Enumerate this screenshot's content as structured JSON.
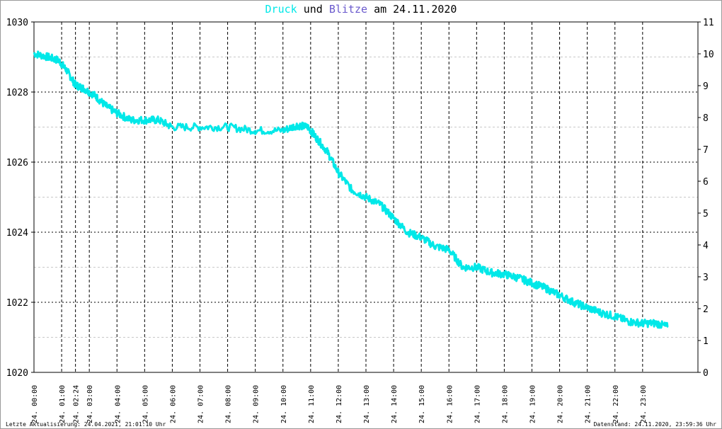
{
  "title": {
    "series1": "Druck",
    "connector": "und",
    "series2": "Blitze",
    "suffix": "am 24.11.2020"
  },
  "footer": {
    "left": "Letzte Aktualisierung: 24.04.2021, 21:01:10 Uhr",
    "right": "Datenstand: 24.11.2020, 23:59:36 Uhr"
  },
  "colors": {
    "druck": "#00e8e8",
    "blitze": "#6a5acd",
    "grid": "#000000",
    "minor_grid": "#c8c8c8",
    "frame": "#9a9a9a"
  },
  "chart_data": {
    "type": "line",
    "title": "Druck und Blitze am 24.11.2020",
    "y_left": {
      "min": 1020,
      "max": 1030,
      "ticks": [
        "1020",
        "1022",
        "1024",
        "1026",
        "1028",
        "1030"
      ]
    },
    "y_right": {
      "min": 0,
      "max": 11,
      "ticks": [
        "0",
        "1",
        "2",
        "3",
        "4",
        "5",
        "6",
        "7",
        "8",
        "9",
        "10",
        "11"
      ]
    },
    "x_range_hours": [
      0,
      24
    ],
    "x_ticks": [
      {
        "h": 0,
        "label": "24. 00:00"
      },
      {
        "h": 1,
        "label": "24. 01:00"
      },
      {
        "h": 1.5,
        "label": "24. 02:24"
      },
      {
        "h": 2,
        "label": "24. 03:00"
      },
      {
        "h": 3,
        "label": "24. 04:00"
      },
      {
        "h": 4,
        "label": "24. 05:00"
      },
      {
        "h": 5,
        "label": "24. 06:00"
      },
      {
        "h": 6,
        "label": "24. 07:00"
      },
      {
        "h": 7,
        "label": "24. 08:00"
      },
      {
        "h": 8,
        "label": "24. 09:00"
      },
      {
        "h": 9,
        "label": "24. 10:00"
      },
      {
        "h": 10,
        "label": "24. 11:00"
      },
      {
        "h": 11,
        "label": "24. 12:00"
      },
      {
        "h": 12,
        "label": "24. 13:00"
      },
      {
        "h": 13,
        "label": "24. 14:00"
      },
      {
        "h": 14,
        "label": "24. 15:00"
      },
      {
        "h": 15,
        "label": "24. 16:00"
      },
      {
        "h": 16,
        "label": "24. 17:00"
      },
      {
        "h": 17,
        "label": "24. 18:00"
      },
      {
        "h": 18,
        "label": "24. 19:00"
      },
      {
        "h": 19,
        "label": "24. 20:00"
      },
      {
        "h": 20,
        "label": "24. 21:00"
      },
      {
        "h": 21,
        "label": "24. 22:00"
      },
      {
        "h": 22,
        "label": "24. 23:00"
      }
    ],
    "grid": true,
    "series": [
      {
        "name": "Druck",
        "axis": "left",
        "x": [
          0,
          0.5,
          0.9,
          1.2,
          1.5,
          1.8,
          2.2,
          2.6,
          3.0,
          3.5,
          4.0,
          4.5,
          5.0,
          6.0,
          7.0,
          8.0,
          9.0,
          9.5,
          9.9,
          10.2,
          10.6,
          11.0,
          11.5,
          12.0,
          12.5,
          13.0,
          13.5,
          14.0,
          14.5,
          15.0,
          15.5,
          16.0,
          16.5,
          17.0,
          17.5,
          18.0,
          18.5,
          19.0,
          19.5,
          20.0,
          20.5,
          21.0,
          21.5,
          22.0,
          22.5,
          22.9
        ],
        "y": [
          1029.1,
          1029.0,
          1028.9,
          1028.6,
          1028.2,
          1028.1,
          1027.9,
          1027.6,
          1027.4,
          1027.2,
          1027.2,
          1027.2,
          1027.0,
          1027.0,
          1027.0,
          1026.9,
          1026.9,
          1027.05,
          1027.0,
          1026.7,
          1026.3,
          1025.7,
          1025.2,
          1025.0,
          1024.8,
          1024.4,
          1024.0,
          1023.85,
          1023.6,
          1023.5,
          1023.0,
          1023.0,
          1022.85,
          1022.8,
          1022.7,
          1022.55,
          1022.4,
          1022.2,
          1022.0,
          1021.85,
          1021.7,
          1021.6,
          1021.45,
          1021.4,
          1021.4,
          1021.3
        ]
      },
      {
        "name": "Blitze",
        "axis": "right",
        "x": [],
        "y": []
      }
    ]
  }
}
